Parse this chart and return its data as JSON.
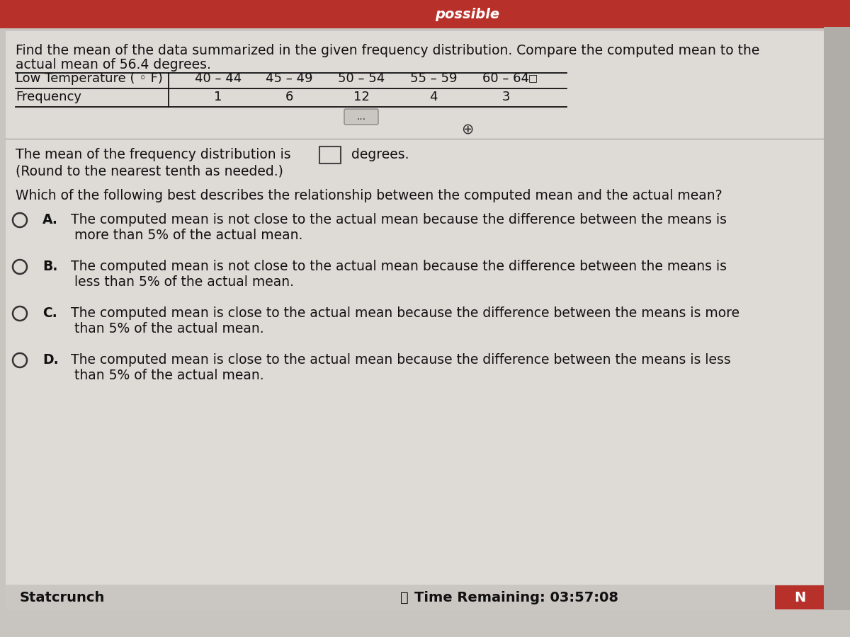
{
  "bg_color": "#c8c4c0",
  "header_bg": "#b8302a",
  "header_text": "possible",
  "content_bg": "#dedad6",
  "title_line1": "Find the mean of the data summarized in the given frequency distribution. Compare the computed mean to the",
  "title_line2": "actual mean of 56.4 degrees.",
  "table_header_col0": "Low Temperature ( ◦ F)",
  "table_header_cols": [
    "40 – 44",
    "45 – 49",
    "50 – 54",
    "55 – 59",
    "60 – 64"
  ],
  "table_row_label": "Frequency",
  "table_row_vals": [
    "1",
    "6",
    "12",
    "4",
    "3"
  ],
  "mean_label": "The mean of the frequency distribution is",
  "mean_suffix": "degrees.",
  "round_note": "(Round to the nearest tenth as needed.)",
  "question": "Which of the following best describes the relationship between the computed mean and the actual mean?",
  "opt_A_line1": "The computed mean is not close to the actual mean because the difference between the means is",
  "opt_A_line2": "more than 5% of the actual mean.",
  "opt_B_line1": "The computed mean is not close to the actual mean because the difference between the means is",
  "opt_B_line2": "less than 5% of the actual mean.",
  "opt_C_line1": "The computed mean is close to the actual mean because the difference between the means is more",
  "opt_C_line2": "than 5% of the actual mean.",
  "opt_D_line1": "The computed mean is close to the actual mean because the difference between the means is less",
  "opt_D_line2": "than 5% of the actual mean.",
  "footer_left": "Statcrunch",
  "footer_clock": "⏱",
  "footer_right": "Time Remaining: 03:57:08",
  "text_color": "#111111",
  "font_size_title": 13.5,
  "font_size_table": 13,
  "font_size_body": 13.5,
  "font_size_footer": 14
}
